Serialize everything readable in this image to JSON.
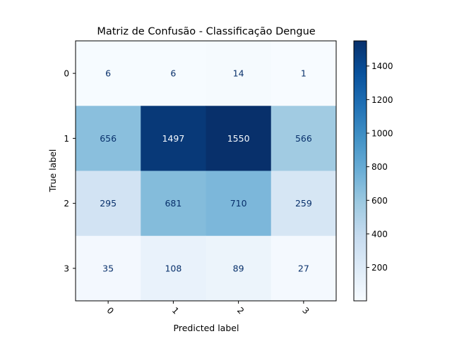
{
  "chart_data": {
    "type": "heatmap",
    "title": "Matriz de Confusão - Classificação Dengue",
    "xlabel": "Predicted label",
    "ylabel": "True label",
    "x_categories": [
      "0",
      "1",
      "2",
      "3"
    ],
    "y_categories": [
      "0",
      "1",
      "2",
      "3"
    ],
    "matrix": [
      [
        6,
        6,
        14,
        1
      ],
      [
        656,
        1497,
        1550,
        566
      ],
      [
        295,
        681,
        710,
        259
      ],
      [
        35,
        108,
        89,
        27
      ]
    ],
    "colormap": "Blues",
    "colorbar": {
      "range": [
        1,
        1550
      ],
      "ticks": [
        200,
        400,
        600,
        800,
        1000,
        1200,
        1400
      ]
    },
    "x_tick_rotation_deg": 45,
    "text_colors": {
      "on_light": "#08306b",
      "on_dark": "#f7fbff"
    }
  }
}
